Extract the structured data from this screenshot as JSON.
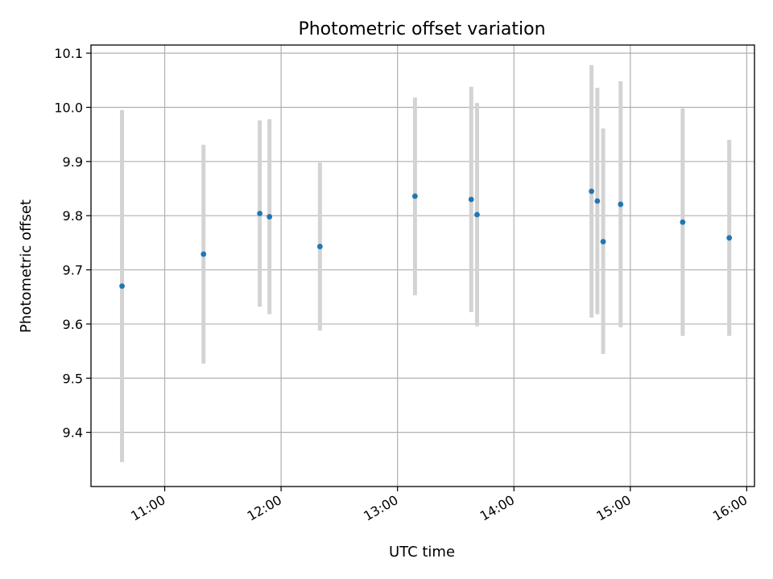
{
  "chart_data": {
    "type": "scatter",
    "title": "Photometric offset variation",
    "xlabel": "UTC time",
    "ylabel": "Photometric offset",
    "x_ticks": [
      "11:00",
      "12:00",
      "13:00",
      "14:00",
      "15:00",
      "16:00"
    ],
    "y_ticks": [
      "9.4",
      "9.5",
      "9.6",
      "9.7",
      "9.8",
      "9.9",
      "10.0",
      "10.1"
    ],
    "xlim": [
      "10:22",
      "16:04"
    ],
    "ylim": [
      9.3,
      10.115
    ],
    "grid": true,
    "points": [
      {
        "x": "10:38",
        "y": 9.67,
        "err_low": 9.345,
        "err_high": 9.995
      },
      {
        "x": "11:20",
        "y": 9.729,
        "err_low": 9.527,
        "err_high": 9.931
      },
      {
        "x": "11:49",
        "y": 9.804,
        "err_low": 9.632,
        "err_high": 9.976
      },
      {
        "x": "11:54",
        "y": 9.798,
        "err_low": 9.618,
        "err_high": 9.978
      },
      {
        "x": "12:20",
        "y": 9.743,
        "err_low": 9.588,
        "err_high": 9.898
      },
      {
        "x": "13:09",
        "y": 9.836,
        "err_low": 9.653,
        "err_high": 10.018
      },
      {
        "x": "13:38",
        "y": 9.83,
        "err_low": 9.622,
        "err_high": 10.038
      },
      {
        "x": "13:41",
        "y": 9.802,
        "err_low": 9.596,
        "err_high": 10.008
      },
      {
        "x": "14:40",
        "y": 9.845,
        "err_low": 9.612,
        "err_high": 10.078
      },
      {
        "x": "14:43",
        "y": 9.827,
        "err_low": 9.618,
        "err_high": 10.036
      },
      {
        "x": "14:46",
        "y": 9.752,
        "err_low": 9.545,
        "err_high": 9.961
      },
      {
        "x": "14:55",
        "y": 9.821,
        "err_low": 9.594,
        "err_high": 10.048
      },
      {
        "x": "15:27",
        "y": 9.788,
        "err_low": 9.578,
        "err_high": 9.998
      },
      {
        "x": "15:51",
        "y": 9.759,
        "err_low": 9.578,
        "err_high": 9.94
      }
    ],
    "colors": {
      "marker": "#1f77b4",
      "errorbar": "#d3d3d3",
      "grid": "#b0b0b0",
      "axes": "#000000"
    }
  }
}
